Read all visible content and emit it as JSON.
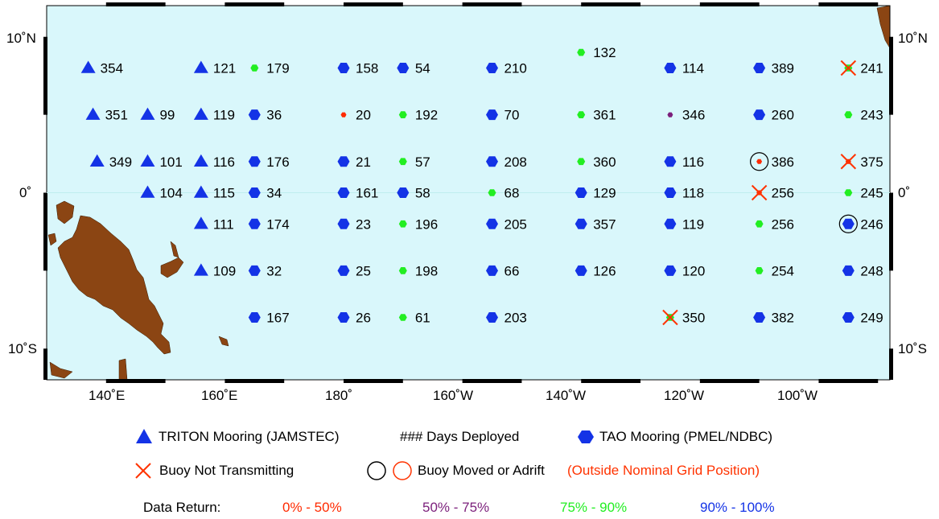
{
  "map": {
    "lat_labels": [
      "10˚N",
      "0˚",
      "10˚S"
    ],
    "lon_labels": [
      "140˚E",
      "160˚E",
      "180˚",
      "160˚W",
      "140˚W",
      "120˚W",
      "100˚W"
    ],
    "colors": {
      "ocean": "#d9f7fb",
      "land": "#8b4513",
      "triton": "#1433e6",
      "tao": "#1433e6",
      "ret_0_50": "#ff2a00",
      "ret_50_75": "#7b1f7b",
      "ret_75_90": "#22ee22",
      "ret_90_100": "#1433e6",
      "not_transmitting": "#ff3300"
    },
    "buoys": [
      {
        "type": "triton",
        "lon": 137,
        "lat": 8,
        "days": "354",
        "ret": "90_100"
      },
      {
        "type": "triton",
        "lon": 156,
        "lat": 8,
        "days": "121",
        "ret": "90_100"
      },
      {
        "type": "tao",
        "lon": 165,
        "lat": 8,
        "days": "179",
        "ret": "75_90"
      },
      {
        "type": "tao",
        "lon": 180,
        "lat": 8,
        "days": "158",
        "ret": "90_100"
      },
      {
        "type": "tao",
        "lon": 190,
        "lat": 8,
        "days": "54",
        "ret": "90_100"
      },
      {
        "type": "tao",
        "lon": 205,
        "lat": 8,
        "days": "210",
        "ret": "90_100"
      },
      {
        "type": "tao",
        "lon": 220,
        "lat": 9,
        "days": "132",
        "ret": "75_90"
      },
      {
        "type": "tao",
        "lon": 235,
        "lat": 8,
        "days": "114",
        "ret": "90_100"
      },
      {
        "type": "tao",
        "lon": 250,
        "lat": 8,
        "days": "389",
        "ret": "90_100"
      },
      {
        "type": "tao",
        "lon": 265,
        "lat": 8,
        "days": "241",
        "ret": "75_90",
        "x": true
      },
      {
        "type": "triton",
        "lon": 137.8,
        "lat": 5,
        "days": "351",
        "ret": "90_100"
      },
      {
        "type": "triton",
        "lon": 147,
        "lat": 5,
        "days": "99",
        "ret": "90_100"
      },
      {
        "type": "triton",
        "lon": 156,
        "lat": 5,
        "days": "119",
        "ret": "90_100"
      },
      {
        "type": "tao",
        "lon": 165,
        "lat": 5,
        "days": "36",
        "ret": "90_100"
      },
      {
        "type": "tao",
        "lon": 180,
        "lat": 5,
        "days": "20",
        "ret": "0_50"
      },
      {
        "type": "tao",
        "lon": 190,
        "lat": 5,
        "days": "192",
        "ret": "75_90"
      },
      {
        "type": "tao",
        "lon": 205,
        "lat": 5,
        "days": "70",
        "ret": "90_100"
      },
      {
        "type": "tao",
        "lon": 220,
        "lat": 5,
        "days": "361",
        "ret": "75_90"
      },
      {
        "type": "tao",
        "lon": 235,
        "lat": 5,
        "days": "346",
        "ret": "50_75"
      },
      {
        "type": "tao",
        "lon": 250,
        "lat": 5,
        "days": "260",
        "ret": "90_100"
      },
      {
        "type": "tao",
        "lon": 265,
        "lat": 5,
        "days": "243",
        "ret": "75_90"
      },
      {
        "type": "triton",
        "lon": 138.5,
        "lat": 2,
        "days": "349",
        "ret": "90_100"
      },
      {
        "type": "triton",
        "lon": 147,
        "lat": 2,
        "days": "101",
        "ret": "90_100"
      },
      {
        "type": "triton",
        "lon": 156,
        "lat": 2,
        "days": "116",
        "ret": "90_100"
      },
      {
        "type": "tao",
        "lon": 165,
        "lat": 2,
        "days": "176",
        "ret": "90_100"
      },
      {
        "type": "tao",
        "lon": 180,
        "lat": 2,
        "days": "21",
        "ret": "90_100"
      },
      {
        "type": "tao",
        "lon": 190,
        "lat": 2,
        "days": "57",
        "ret": "75_90"
      },
      {
        "type": "tao",
        "lon": 205,
        "lat": 2,
        "days": "208",
        "ret": "90_100"
      },
      {
        "type": "tao",
        "lon": 220,
        "lat": 2,
        "days": "360",
        "ret": "75_90"
      },
      {
        "type": "tao",
        "lon": 235,
        "lat": 2,
        "days": "116",
        "ret": "90_100"
      },
      {
        "type": "tao",
        "lon": 250,
        "lat": 2,
        "days": "386",
        "ret": "0_50",
        "circle": true
      },
      {
        "type": "tao",
        "lon": 265,
        "lat": 2,
        "days": "375",
        "ret": "0_50",
        "x": true
      },
      {
        "type": "triton",
        "lon": 147,
        "lat": 0,
        "days": "104",
        "ret": "90_100"
      },
      {
        "type": "triton",
        "lon": 156,
        "lat": 0,
        "days": "115",
        "ret": "90_100"
      },
      {
        "type": "tao",
        "lon": 165,
        "lat": 0,
        "days": "34",
        "ret": "90_100"
      },
      {
        "type": "tao",
        "lon": 180,
        "lat": 0,
        "days": "161",
        "ret": "90_100"
      },
      {
        "type": "tao",
        "lon": 190,
        "lat": 0,
        "days": "58",
        "ret": "90_100"
      },
      {
        "type": "tao",
        "lon": 205,
        "lat": 0,
        "days": "68",
        "ret": "75_90"
      },
      {
        "type": "tao",
        "lon": 220,
        "lat": 0,
        "days": "129",
        "ret": "90_100"
      },
      {
        "type": "tao",
        "lon": 235,
        "lat": 0,
        "days": "118",
        "ret": "90_100"
      },
      {
        "type": "tao",
        "lon": 250,
        "lat": 0,
        "days": "256",
        "ret": "0_50",
        "x": true
      },
      {
        "type": "tao",
        "lon": 265,
        "lat": 0,
        "days": "245",
        "ret": "75_90"
      },
      {
        "type": "triton",
        "lon": 156,
        "lat": -2,
        "days": "111",
        "ret": "90_100"
      },
      {
        "type": "tao",
        "lon": 165,
        "lat": -2,
        "days": "174",
        "ret": "90_100"
      },
      {
        "type": "tao",
        "lon": 180,
        "lat": -2,
        "days": "23",
        "ret": "90_100"
      },
      {
        "type": "tao",
        "lon": 190,
        "lat": -2,
        "days": "196",
        "ret": "75_90"
      },
      {
        "type": "tao",
        "lon": 205,
        "lat": -2,
        "days": "205",
        "ret": "90_100"
      },
      {
        "type": "tao",
        "lon": 220,
        "lat": -2,
        "days": "357",
        "ret": "90_100"
      },
      {
        "type": "tao",
        "lon": 235,
        "lat": -2,
        "days": "119",
        "ret": "90_100"
      },
      {
        "type": "tao",
        "lon": 250,
        "lat": -2,
        "days": "256",
        "ret": "75_90"
      },
      {
        "type": "tao",
        "lon": 265,
        "lat": -2,
        "days": "246",
        "ret": "90_100",
        "circle": true
      },
      {
        "type": "triton",
        "lon": 156,
        "lat": -5,
        "days": "109",
        "ret": "90_100"
      },
      {
        "type": "tao",
        "lon": 165,
        "lat": -5,
        "days": "32",
        "ret": "90_100"
      },
      {
        "type": "tao",
        "lon": 180,
        "lat": -5,
        "days": "25",
        "ret": "90_100"
      },
      {
        "type": "tao",
        "lon": 190,
        "lat": -5,
        "days": "198",
        "ret": "75_90"
      },
      {
        "type": "tao",
        "lon": 205,
        "lat": -5,
        "days": "66",
        "ret": "90_100"
      },
      {
        "type": "tao",
        "lon": 220,
        "lat": -5,
        "days": "126",
        "ret": "90_100"
      },
      {
        "type": "tao",
        "lon": 235,
        "lat": -5,
        "days": "120",
        "ret": "90_100"
      },
      {
        "type": "tao",
        "lon": 250,
        "lat": -5,
        "days": "254",
        "ret": "75_90"
      },
      {
        "type": "tao",
        "lon": 265,
        "lat": -5,
        "days": "248",
        "ret": "90_100"
      },
      {
        "type": "tao",
        "lon": 165,
        "lat": -8,
        "days": "167",
        "ret": "90_100"
      },
      {
        "type": "tao",
        "lon": 180,
        "lat": -8,
        "days": "26",
        "ret": "90_100"
      },
      {
        "type": "tao",
        "lon": 190,
        "lat": -8,
        "days": "61",
        "ret": "75_90"
      },
      {
        "type": "tao",
        "lon": 205,
        "lat": -8,
        "days": "203",
        "ret": "90_100"
      },
      {
        "type": "tao",
        "lon": 235,
        "lat": -8,
        "days": "350",
        "ret": "75_90",
        "x": true
      },
      {
        "type": "tao",
        "lon": 250,
        "lat": -8,
        "days": "382",
        "ret": "90_100"
      },
      {
        "type": "tao",
        "lon": 265,
        "lat": -8,
        "days": "249",
        "ret": "90_100"
      }
    ]
  },
  "legend": {
    "triton_label": "TRITON Mooring (JAMSTEC)",
    "days_label": "### Days Deployed",
    "tao_label": "TAO Mooring (PMEL/NDBC)",
    "not_transmitting_label": "Buoy Not Transmitting",
    "moved_label": "Buoy Moved or Adrift",
    "moved_note": "(Outside Nominal Grid Position)",
    "data_return_label": "Data Return:",
    "ranges": [
      "0% - 50%",
      "50% - 75%",
      "75% - 90%",
      "90% - 100%"
    ]
  }
}
